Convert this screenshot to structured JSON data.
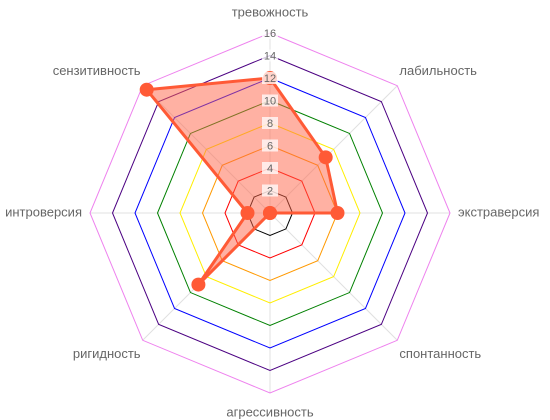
{
  "chart_data": {
    "type": "radar",
    "categories": [
      "тревожность",
      "лабильность",
      "экстраверсия",
      "спонтанность",
      "агрессивность",
      "ригидность",
      "интроверсия",
      "сензитивность"
    ],
    "values": [
      12,
      7,
      6,
      0,
      0,
      9,
      2,
      15.5
    ],
    "color": "#ff5a36",
    "fill": "rgba(255,99,71,0.5)",
    "rlim": [
      0,
      16
    ],
    "rticks": [
      2,
      4,
      6,
      8,
      10,
      12,
      14,
      16
    ],
    "ring_colors": [
      "#000000",
      "#ff0000",
      "#ff9900",
      "#ffee00",
      "#008000",
      "#0000ff",
      "#4b0082",
      "#ee82ee"
    ],
    "grid": true
  }
}
